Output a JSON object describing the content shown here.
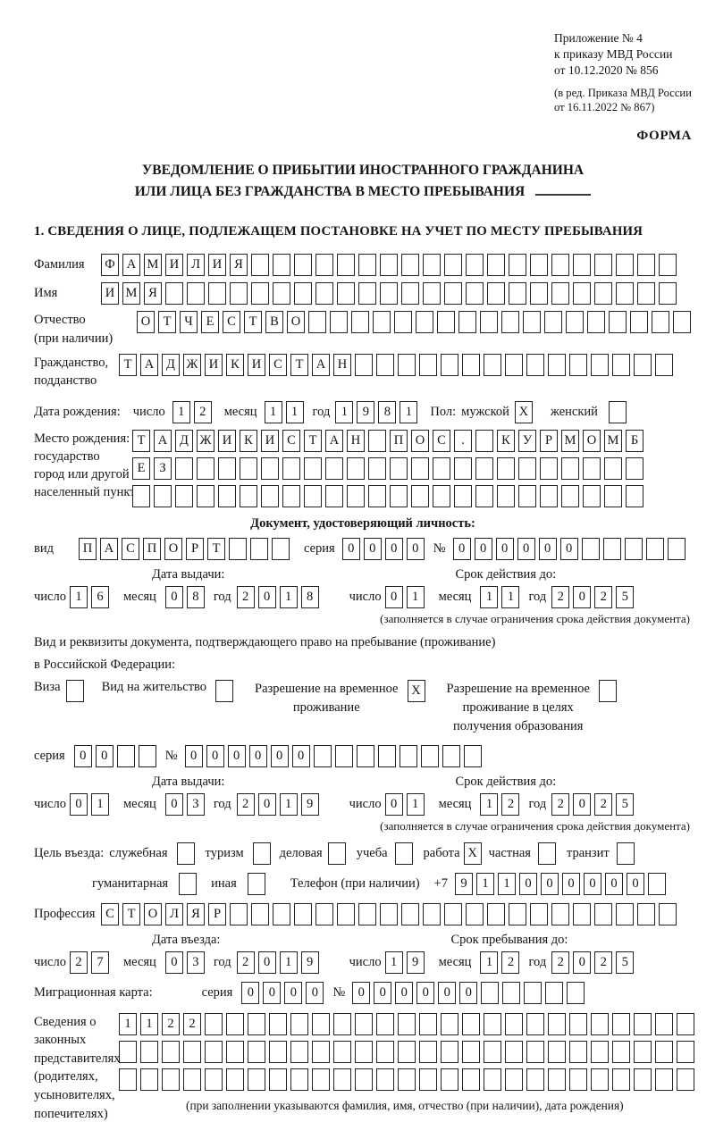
{
  "header": {
    "appendix_lines": [
      "Приложение № 4",
      "к приказу МВД России",
      "от 10.12.2020 № 856"
    ],
    "amendment_lines": [
      "(в ред. Приказа МВД России",
      "от 16.11.2022 № 867)"
    ],
    "form_label": "ФОРМА"
  },
  "title": {
    "line1": "УВЕДОМЛЕНИЕ О ПРИБЫТИИ ИНОСТРАННОГО ГРАЖДАНИНА",
    "line2": "ИЛИ ЛИЦА БЕЗ ГРАЖДАНСТВА В МЕСТО ПРЕБЫВАНИЯ"
  },
  "section1_heading": "1. СВЕДЕНИЯ О ЛИЦЕ, ПОДЛЕЖАЩЕМ ПОСТАНОВКЕ НА УЧЕТ ПО МЕСТУ ПРЕБЫВАНИЯ",
  "labels": {
    "surname": "Фамилия",
    "name": "Имя",
    "patronymic": "Отчество",
    "patronymic2": "(при наличии)",
    "citizenship": "Гражданство,",
    "citizenship2": "подданство",
    "birth_date": "Дата рождения:",
    "day": "число",
    "month": "месяц",
    "year": "год",
    "sex": "Пол:",
    "male": "мужской",
    "female": "женский",
    "birth_place": "Место рождения:",
    "birth_place2": "государство",
    "birth_place3": "город или другой",
    "birth_place4": "населенный пункт",
    "id_doc_heading": "Документ, удостоверяющий личность:",
    "kind": "вид",
    "series": "серия",
    "number": "№",
    "issue_date": "Дата выдачи:",
    "valid_until": "Срок действия до:",
    "validity_note": "(заполняется в случае ограничения срока действия документа)",
    "residence_line1": "Вид и реквизиты документа, подтверждающего право на пребывание (проживание)",
    "residence_line2": "в Российской Федерации:",
    "visa": "Виза",
    "residence_permit": "Вид на жительство",
    "temp_permit_l1": "Разрешение на временное",
    "temp_permit_l2": "проживание",
    "edu_permit_l1": "Разрешение на временное",
    "edu_permit_l2": "проживание в целях",
    "edu_permit_l3": "получения образования",
    "purpose": "Цель въезда:",
    "purpose_official": "служебная",
    "purpose_tourism": "туризм",
    "purpose_business": "деловая",
    "purpose_study": "учеба",
    "purpose_work": "работа",
    "purpose_private": "частная",
    "purpose_transit": "транзит",
    "purpose_humanitarian": "гуманитарная",
    "purpose_other": "иная",
    "phone": "Телефон (при наличии)",
    "phone_prefix": "+7",
    "profession": "Профессия",
    "entry_date": "Дата въезда:",
    "stay_until": "Срок пребывания до:",
    "migration_card": "Миграционная карта:",
    "representatives1": "Сведения о",
    "representatives2": "законных",
    "representatives3": "представителях",
    "representatives4": "(родителях,",
    "representatives5": "усыновителях,",
    "representatives6": "попечителях)",
    "representatives_note": "(при заполнении указываются фамилия, имя, отчество (при наличии), дата рождения)"
  },
  "fields": {
    "surname": {
      "value": "ФАМИЛИЯ",
      "total": 27
    },
    "name": {
      "value": "ИМЯ",
      "total": 27
    },
    "patronymic": {
      "value": "ОТЧЕСТВО",
      "total": 26
    },
    "citizenship": {
      "value": "ТАДЖИКИСТАН",
      "total": 26
    },
    "birth_day": {
      "value": "12",
      "total": 2
    },
    "birth_month": {
      "value": "11",
      "total": 2
    },
    "birth_year": {
      "value": "1981",
      "total": 4
    },
    "sex_male_cb": {
      "value": "X",
      "total": 1
    },
    "sex_female_cb": {
      "value": "",
      "total": 1
    },
    "birth_place_row1": {
      "value": "ТАДЖИКИСТАН ПОС. КУРМОМБ",
      "total": 24
    },
    "birth_place_row2": {
      "value": "ЕЗ",
      "total": 24
    },
    "birth_place_row3": {
      "value": "",
      "total": 24
    },
    "id_kind": {
      "value": "ПАСПОРТ",
      "total": 10
    },
    "id_series": {
      "value": "0000",
      "total": 4
    },
    "id_number": {
      "value": "000000",
      "total": 11
    },
    "id_issue_day": {
      "value": "16",
      "total": 2
    },
    "id_issue_month": {
      "value": "08",
      "total": 2
    },
    "id_issue_year": {
      "value": "2018",
      "total": 4
    },
    "id_valid_day": {
      "value": "01",
      "total": 2
    },
    "id_valid_month": {
      "value": "11",
      "total": 2
    },
    "id_valid_year": {
      "value": "2025",
      "total": 4
    },
    "visa_cb": {
      "value": "",
      "total": 1
    },
    "residence_permit_cb": {
      "value": "",
      "total": 1
    },
    "temp_permit_cb": {
      "value": "X",
      "total": 1
    },
    "edu_permit_cb": {
      "value": "",
      "total": 1
    },
    "res_series": {
      "value": "00",
      "total": 4
    },
    "res_number": {
      "value": "000000",
      "total": 14
    },
    "res_issue_day": {
      "value": "01",
      "total": 2
    },
    "res_issue_month": {
      "value": "03",
      "total": 2
    },
    "res_issue_year": {
      "value": "2019",
      "total": 4
    },
    "res_valid_day": {
      "value": "01",
      "total": 2
    },
    "res_valid_month": {
      "value": "12",
      "total": 2
    },
    "res_valid_year": {
      "value": "2025",
      "total": 4
    },
    "purpose_official_cb": {
      "value": "",
      "total": 1
    },
    "purpose_tourism_cb": {
      "value": "",
      "total": 1
    },
    "purpose_business_cb": {
      "value": "",
      "total": 1
    },
    "purpose_study_cb": {
      "value": "",
      "total": 1
    },
    "purpose_work_cb": {
      "value": "X",
      "total": 1
    },
    "purpose_private_cb": {
      "value": "",
      "total": 1
    },
    "purpose_transit_cb": {
      "value": "",
      "total": 1
    },
    "purpose_humanitarian_cb": {
      "value": "",
      "total": 1
    },
    "purpose_other_cb": {
      "value": "",
      "total": 1
    },
    "phone_digits": {
      "value": "911000000",
      "total": 10
    },
    "profession": {
      "value": "СТОЛЯР",
      "total": 27
    },
    "entry_day": {
      "value": "27",
      "total": 2
    },
    "entry_month": {
      "value": "03",
      "total": 2
    },
    "entry_year": {
      "value": "2019",
      "total": 4
    },
    "stay_day": {
      "value": "19",
      "total": 2
    },
    "stay_month": {
      "value": "12",
      "total": 2
    },
    "stay_year": {
      "value": "2025",
      "total": 4
    },
    "mig_series": {
      "value": "0000",
      "total": 4
    },
    "mig_number": {
      "value": "000000",
      "total": 11
    },
    "rep_row1": {
      "value": "1122",
      "total": 27
    },
    "rep_row2": {
      "value": "",
      "total": 27
    },
    "rep_row3": {
      "value": "",
      "total": 27
    }
  }
}
